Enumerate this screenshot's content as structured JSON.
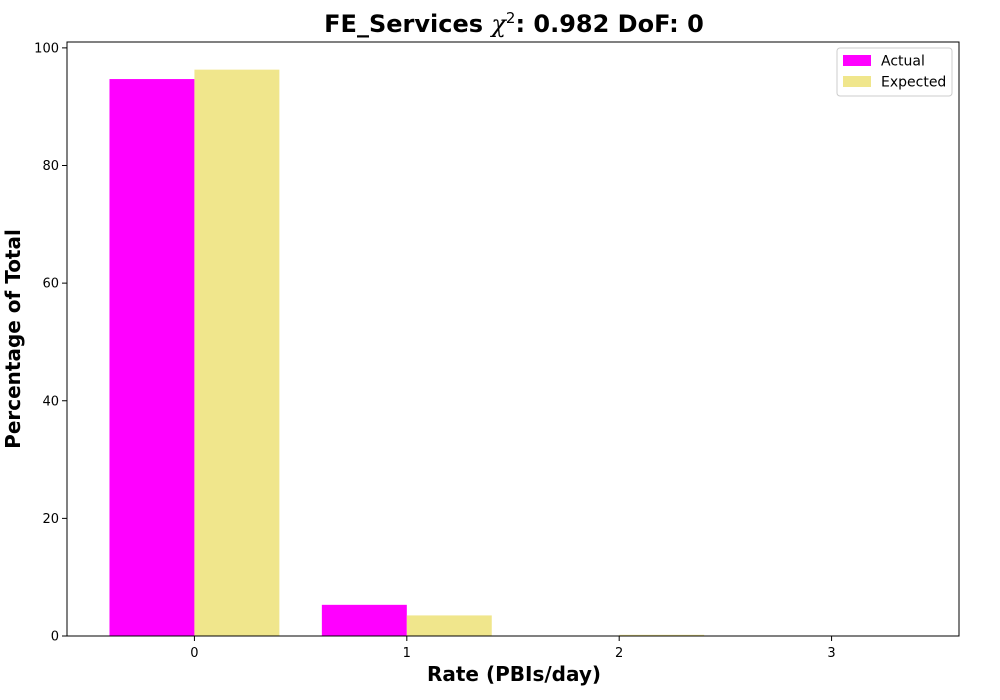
{
  "chart_data": {
    "type": "bar",
    "title_main": "FE_Services ",
    "title_chi": "χ",
    "title_sup": "2",
    "title_rest": ": 0.982 DoF: 0",
    "xlabel": "Rate (PBIs/day)",
    "ylabel": "Percentage of Total",
    "categories": [
      "0",
      "1",
      "2",
      "3"
    ],
    "x": [
      0,
      1,
      2,
      3
    ],
    "series": [
      {
        "name": "Actual",
        "color": "#ff00ff",
        "values": [
          94.7,
          5.3,
          0.0,
          0.0
        ]
      },
      {
        "name": "Expected",
        "color": "#f0e68c",
        "values": [
          96.3,
          3.5,
          0.2,
          0.0
        ]
      }
    ],
    "xlim": [
      -0.6,
      3.6
    ],
    "ylim": [
      0,
      101
    ],
    "yticks": [
      0,
      20,
      40,
      60,
      80,
      100
    ],
    "grid": false,
    "legend_position": "top-right"
  }
}
